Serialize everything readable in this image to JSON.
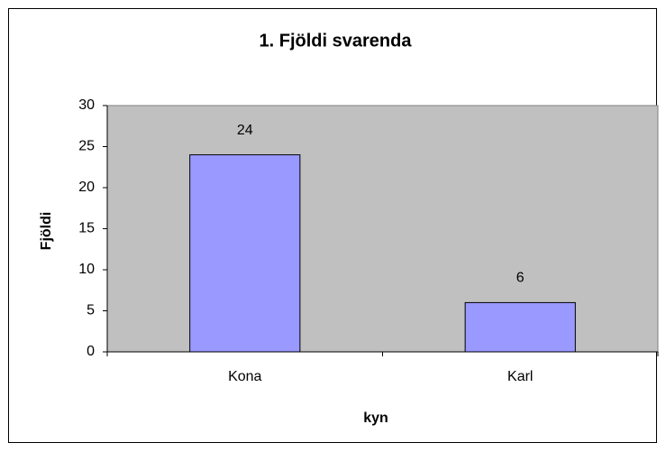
{
  "chart_data": {
    "type": "bar",
    "title": "1. Fjöldi svarenda",
    "x_label": "kyn",
    "y_label": "Fjöldi",
    "categories": [
      "Kona",
      "Karl"
    ],
    "values": [
      24,
      6
    ],
    "color": "#9999ff",
    "ylim": [
      0,
      30
    ],
    "yticks": [
      0,
      5,
      10,
      15,
      20,
      25,
      30
    ],
    "grid": false,
    "plot_background": "#c0c0c0"
  }
}
